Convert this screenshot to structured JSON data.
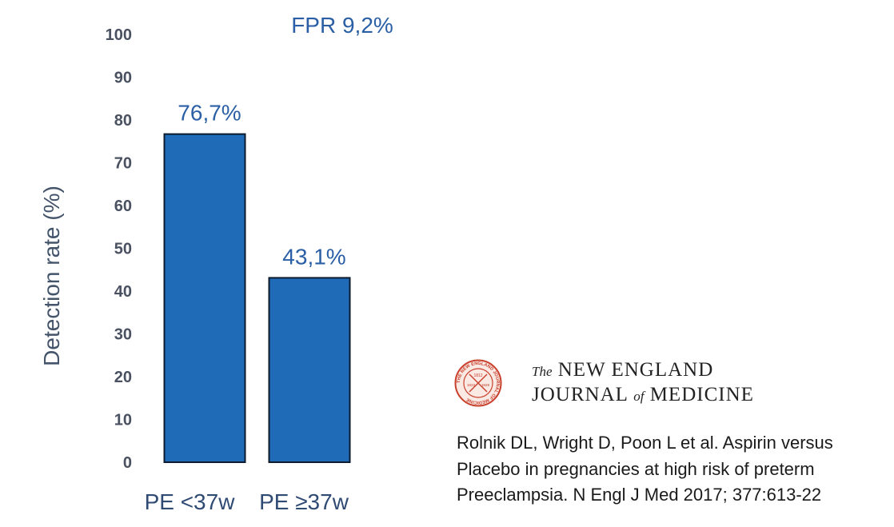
{
  "chart_data": {
    "type": "bar",
    "categories": [
      "PE <37w",
      "PE ≥37w"
    ],
    "values": [
      76.7,
      43.1
    ],
    "data_labels": [
      "76,7%",
      "43,1%"
    ],
    "title": "",
    "annotation": "FPR 9,2%",
    "xlabel": "",
    "ylabel": "Detection rate (%)",
    "ylim": [
      0,
      100
    ],
    "yticks": [
      0,
      10,
      20,
      30,
      40,
      50,
      60,
      70,
      80,
      90,
      100
    ],
    "bar_color": "#1f6bb8",
    "grid": false,
    "legend": "none"
  },
  "journal": {
    "the": "The",
    "line1": "NEW ENGLAND",
    "line2_a": "JOURNAL",
    "of": "of",
    "line2_b": "MEDICINE",
    "seal_text": "THE NEW ENGLAND JOURNAL OF MEDICINE",
    "seal_years": [
      "1812",
      "1823",
      "1828"
    ]
  },
  "citation": {
    "line1": "Rolnik DL, Wright D, Poon L et al. Aspirin versus",
    "line2": "Placebo in pregnancies at high risk of preterm",
    "line3": "Preeclampsia. N Engl J Med 2017; 377:613-22"
  }
}
